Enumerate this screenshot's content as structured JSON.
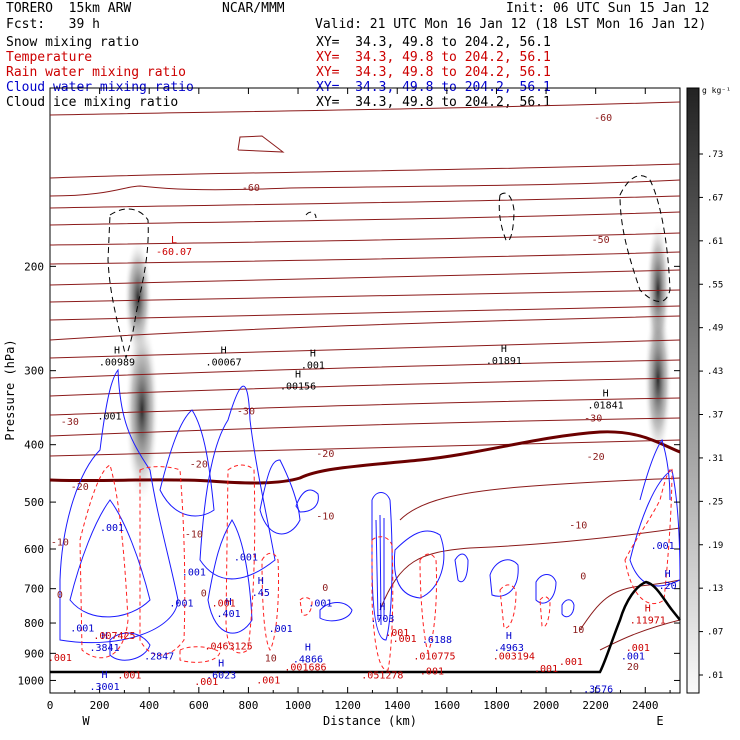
{
  "header": {
    "model": "TORERO  15km ARW",
    "center": "NCAR/MMM",
    "init": "Init: 06 UTC Sun 15 Jan 12",
    "fcst": "Fcst:   39 h",
    "valid": "Valid: 21 UTC Mon 16 Jan 12 (18 LST Mon 16 Jan 12)"
  },
  "fields": [
    {
      "name": "Snow mixing ratio",
      "xy": "XY=  34.3, 49.8 to 204.2, 56.1",
      "color": "#000000"
    },
    {
      "name": "Temperature",
      "xy": "XY=  34.3, 49.8 to 204.2, 56.1",
      "color": "#cc0000"
    },
    {
      "name": "Rain water mixing ratio",
      "xy": "XY=  34.3, 49.8 to 204.2, 56.1",
      "color": "#cc0000"
    },
    {
      "name": "Cloud water mixing ratio",
      "xy": "XY=  34.3, 49.8 to 204.2, 56.1",
      "color": "#0000cc"
    },
    {
      "name": "Cloud ice mixing ratio",
      "xy": "XY=  34.3, 49.8 to 204.2, 56.1",
      "color": "#000000"
    }
  ],
  "chart_data": {
    "type": "cross-section",
    "xlabel": "Distance (km)",
    "ylabel": "Pressure (hPa)",
    "xlim": [
      0,
      2540
    ],
    "ylim": [
      1050,
      100
    ],
    "y_scale": "log",
    "x_ticks": [
      "0",
      "200",
      "400",
      "600",
      "800",
      "1000",
      "1200",
      "1400",
      "1600",
      "1800",
      "2000",
      "2200",
      "2400"
    ],
    "y_ticks": [
      "200",
      "300",
      "400",
      "500",
      "600",
      "700",
      "800",
      "900",
      "1000"
    ],
    "x_end_labels": {
      "left": "W",
      "right": "E"
    },
    "colorbar": {
      "unit": "g kg⁻¹",
      "labels": [
        ".73",
        ".67",
        ".61",
        ".55",
        ".49",
        ".43",
        ".37",
        ".31",
        ".25",
        ".19",
        ".13",
        ".07",
        ".01"
      ]
    },
    "temperature_labels": [
      {
        "text": "-60",
        "x": 810,
        "p": 147
      },
      {
        "text": "-60",
        "x": 2230,
        "p": 112
      },
      {
        "text": "-50",
        "x": 2220,
        "p": 180
      },
      {
        "text": "-30",
        "x": 80,
        "p": 365
      },
      {
        "text": "-30",
        "x": 790,
        "p": 350
      },
      {
        "text": "-30",
        "x": 2190,
        "p": 360
      },
      {
        "text": "-20",
        "x": 120,
        "p": 470
      },
      {
        "text": "-20",
        "x": 600,
        "p": 430
      },
      {
        "text": "-20",
        "x": 1110,
        "p": 413
      },
      {
        "text": "-20",
        "x": 2200,
        "p": 418
      },
      {
        "text": "-10",
        "x": 40,
        "p": 583
      },
      {
        "text": "-10",
        "x": 580,
        "p": 565
      },
      {
        "text": "-10",
        "x": 1110,
        "p": 527
      },
      {
        "text": "-10",
        "x": 2130,
        "p": 545
      },
      {
        "text": "0",
        "x": 40,
        "p": 715
      },
      {
        "text": "0",
        "x": 620,
        "p": 710
      },
      {
        "text": "0",
        "x": 1110,
        "p": 695
      },
      {
        "text": "0",
        "x": 2150,
        "p": 665
      },
      {
        "text": "10",
        "x": 2130,
        "p": 818
      },
      {
        "text": "10",
        "x": 890,
        "p": 915
      },
      {
        "text": "20",
        "x": 2350,
        "p": 945
      }
    ],
    "extrema": [
      {
        "kind": "L",
        "value": "-60.07",
        "x": 500,
        "p": 190,
        "color": "#cc0000"
      },
      {
        "kind": "H",
        "value": ".00989",
        "x": 270,
        "p": 292,
        "color": "#000000"
      },
      {
        "kind": "H",
        "value": ".00067",
        "x": 700,
        "p": 292,
        "color": "#000000"
      },
      {
        "kind": "H",
        "value": ".00156",
        "x": 1000,
        "p": 320,
        "color": "#000000"
      },
      {
        "kind": "H",
        "value": ".01891",
        "x": 1830,
        "p": 290,
        "color": "#000000"
      },
      {
        "kind": "H",
        "value": ".01841",
        "x": 2240,
        "p": 345,
        "color": "#000000"
      },
      {
        "kind": "H",
        "value": ".001",
        "x": 1060,
        "p": 295,
        "color": "#000000"
      },
      {
        "kind": "",
        "value": ".001",
        "x": 240,
        "p": 360,
        "color": "#000000"
      },
      {
        "kind": "",
        "value": ".001",
        "x": 250,
        "p": 555,
        "color": "#0000cc"
      },
      {
        "kind": "",
        "value": ".001",
        "x": 580,
        "p": 660,
        "color": "#0000cc"
      },
      {
        "kind": "",
        "value": ".001",
        "x": 790,
        "p": 623,
        "color": "#0000cc"
      },
      {
        "kind": "",
        "value": ".001",
        "x": 2470,
        "p": 595,
        "color": "#0000cc"
      },
      {
        "kind": "",
        "value": ".001",
        "x": 530,
        "p": 745,
        "color": "#0000cc"
      },
      {
        "kind": "",
        "value": ".001",
        "x": 1090,
        "p": 745,
        "color": "#0000cc"
      },
      {
        "kind": "",
        "value": ".001",
        "x": 130,
        "p": 820,
        "color": "#0000cc"
      },
      {
        "kind": "",
        "value": ".001",
        "x": 930,
        "p": 822,
        "color": "#0000cc"
      },
      {
        "kind": "H",
        "value": ".401",
        "x": 720,
        "p": 775,
        "color": "#0000cc"
      },
      {
        "kind": "H",
        "value": ".45",
        "x": 850,
        "p": 715,
        "color": "#0000cc"
      },
      {
        "kind": "",
        "value": ".001",
        "x": 700,
        "p": 745,
        "color": "#cc0000"
      },
      {
        "kind": "H",
        "value": ".703",
        "x": 1340,
        "p": 790,
        "color": "#0000cc"
      },
      {
        "kind": "",
        "value": ".6188",
        "x": 1560,
        "p": 858,
        "color": "#0000cc"
      },
      {
        "kind": "H",
        "value": ".3841",
        "x": 220,
        "p": 885,
        "color": "#0000cc"
      },
      {
        "kind": "",
        "value": ".2847",
        "x": 440,
        "p": 915,
        "color": "#0000cc"
      },
      {
        "kind": "H",
        "value": ".4866",
        "x": 1040,
        "p": 925,
        "color": "#0000cc"
      },
      {
        "kind": "H",
        "value": ".4963",
        "x": 1850,
        "p": 885,
        "color": "#0000cc"
      },
      {
        "kind": "H",
        "value": ".6023",
        "x": 690,
        "p": 985,
        "color": "#0000cc"
      },
      {
        "kind": "H",
        "value": ".3001",
        "x": 220,
        "p": 1030,
        "color": "#0000cc"
      },
      {
        "kind": "",
        "value": ".3576",
        "x": 2210,
        "p": 1040,
        "color": "#0000cc"
      },
      {
        "kind": "",
        "value": ".001",
        "x": 2350,
        "p": 915,
        "color": "#0000cc"
      },
      {
        "kind": "H",
        "value": ".20",
        "x": 2490,
        "p": 695,
        "color": "#0000cc"
      },
      {
        "kind": "H",
        "value": ".11971",
        "x": 2410,
        "p": 795,
        "color": "#cc0000"
      },
      {
        "kind": "",
        "value": ".001",
        "x": 2370,
        "p": 885,
        "color": "#cc0000"
      },
      {
        "kind": "",
        "value": ".007425",
        "x": 260,
        "p": 845,
        "color": "#cc0000"
      },
      {
        "kind": "",
        "value": ".001",
        "x": 1400,
        "p": 835,
        "color": "#cc0000"
      },
      {
        "kind": "",
        "value": ".001",
        "x": 1430,
        "p": 855,
        "color": "#cc0000"
      },
      {
        "kind": "",
        "value": ".0463125",
        "x": 720,
        "p": 880,
        "color": "#cc0000"
      },
      {
        "kind": "",
        "value": ".001686",
        "x": 1030,
        "p": 955,
        "color": "#cc0000"
      },
      {
        "kind": "",
        "value": ".010775",
        "x": 1550,
        "p": 915,
        "color": "#cc0000"
      },
      {
        "kind": "",
        "value": ".003194",
        "x": 1870,
        "p": 915,
        "color": "#cc0000"
      },
      {
        "kind": "",
        "value": ".051278",
        "x": 1340,
        "p": 985,
        "color": "#cc0000"
      },
      {
        "kind": "",
        "value": ".001",
        "x": 320,
        "p": 985,
        "color": "#cc0000"
      },
      {
        "kind": "",
        "value": ".001",
        "x": 1540,
        "p": 970,
        "color": "#cc0000"
      },
      {
        "kind": "",
        "value": ".001",
        "x": 2000,
        "p": 960,
        "color": "#cc0000"
      },
      {
        "kind": "",
        "value": ".001",
        "x": 880,
        "p": 1005,
        "color": "#cc0000"
      },
      {
        "kind": "",
        "value": ".001",
        "x": 40,
        "p": 920,
        "color": "#cc0000"
      },
      {
        "kind": "",
        "value": ".001",
        "x": 2100,
        "p": 935,
        "color": "#cc0000"
      },
      {
        "kind": "",
        "value": ".001",
        "x": 630,
        "p": 1010,
        "color": "#cc0000"
      }
    ]
  }
}
